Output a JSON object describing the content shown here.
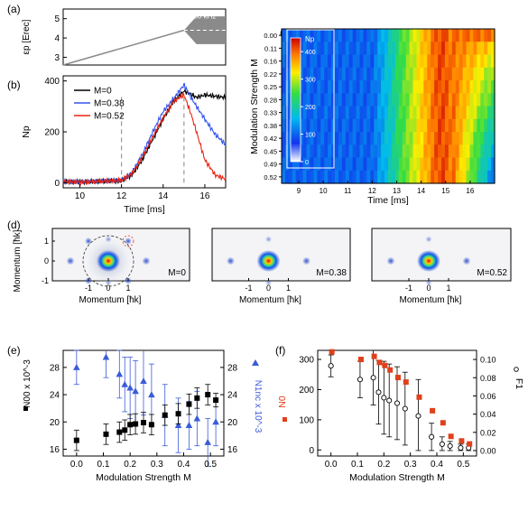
{
  "panel_labels": {
    "a": "(a)",
    "b": "(b)",
    "c": "(c)",
    "d": "(d)",
    "e": "(e)",
    "f": "(f)"
  },
  "chart_data": [
    {
      "id": "a",
      "type": "line",
      "ylabel": "εp [Erec]",
      "yticks": [
        3,
        4,
        5
      ],
      "xlim": [
        9.2,
        17
      ],
      "ylim": [
        2.6,
        5.5
      ],
      "series": [
        {
          "x": [
            9.2,
            15.0
          ],
          "y": [
            2.6,
            4.4
          ]
        }
      ],
      "modulated_region": {
        "x_start": 15.0,
        "x_end": 17.0,
        "center": 4.4,
        "max_amplitude": 0.72
      },
      "annotation": "50 kHz",
      "colors": {
        "line": "#8a8a8a",
        "fill": "#8a8a8a"
      }
    },
    {
      "id": "b",
      "type": "line",
      "xlabel": "Time [ms]",
      "ylabel": "Np",
      "xlim": [
        9.2,
        17
      ],
      "ylim": [
        -20,
        420
      ],
      "xticks": [
        10,
        12,
        14,
        16
      ],
      "yticks": [
        0,
        200,
        400
      ],
      "vlines": [
        12,
        15
      ],
      "legend": {
        "position": "top-left",
        "entries": [
          "M=0",
          "M=0.38",
          "M=0.52"
        ]
      },
      "series": [
        {
          "name": "M=0",
          "color": "#000000",
          "x": [
            9.2,
            10,
            11,
            12,
            12.5,
            13,
            13.5,
            14,
            14.5,
            15,
            15.3,
            15.6,
            16,
            16.5,
            17
          ],
          "y": [
            5,
            3,
            6,
            8,
            30,
            90,
            170,
            250,
            320,
            360,
            350,
            335,
            345,
            340,
            335
          ]
        },
        {
          "name": "M=0.38",
          "color": "#3355ee",
          "x": [
            9.2,
            10,
            11,
            12,
            12.5,
            13,
            13.5,
            14,
            14.5,
            15,
            15.3,
            15.6,
            16,
            16.5,
            17
          ],
          "y": [
            5,
            3,
            6,
            10,
            40,
            110,
            200,
            280,
            330,
            385,
            340,
            300,
            250,
            190,
            150
          ]
        },
        {
          "name": "M=0.52",
          "color": "#ee2211",
          "x": [
            9.2,
            10,
            11,
            12,
            12.5,
            13,
            13.5,
            14,
            14.5,
            15,
            15.3,
            15.6,
            16,
            16.5,
            17
          ],
          "y": [
            5,
            3,
            6,
            9,
            35,
            100,
            180,
            255,
            320,
            345,
            280,
            200,
            90,
            30,
            15
          ]
        }
      ]
    },
    {
      "id": "c",
      "type": "heatmap",
      "title": "Np",
      "xlabel": "Time [ms]",
      "ylabel": "Modulation Strength M",
      "xlim": [
        8.3,
        17
      ],
      "xticks": [
        9,
        10,
        11,
        12,
        13,
        14,
        15,
        16
      ],
      "rows": [
        "0.00",
        "0.11",
        "0.16",
        "0.22",
        "0.25",
        "0.28",
        "0.33",
        "0.38",
        "0.42",
        "0.45",
        "0.49",
        "0.52"
      ],
      "colorbar": {
        "ticks": [
          0,
          100,
          200,
          300,
          400
        ],
        "min": 0,
        "max": 450
      }
    },
    {
      "id": "d",
      "type": "image",
      "xlabel": "Momentum [ħk]",
      "ylabel": "Momentum [ħk]",
      "xticks": [
        -1,
        0,
        1
      ],
      "yticks": [
        1,
        0,
        -1
      ],
      "images": [
        {
          "label": "M=0"
        },
        {
          "label": "M=0.38"
        },
        {
          "label": "M=0.52"
        }
      ]
    },
    {
      "id": "e",
      "type": "scatter",
      "xlabel": "Modulation Strength M",
      "ylabel_left": "N00 x 10^-3",
      "ylabel_right": "N1nc x 10^-3",
      "xlim": [
        -0.05,
        0.55
      ],
      "ylim": [
        15,
        30.5
      ],
      "xticks": [
        0.0,
        0.1,
        0.2,
        0.3,
        0.4,
        0.5
      ],
      "yticks": [
        16,
        20,
        24,
        28
      ],
      "series": [
        {
          "name": "N00",
          "color": "#000000",
          "marker": "square",
          "x": [
            0,
            0.11,
            0.16,
            0.18,
            0.2,
            0.22,
            0.25,
            0.28,
            0.33,
            0.38,
            0.42,
            0.45,
            0.49,
            0.52
          ],
          "y": [
            17.3,
            18.2,
            18.5,
            18.8,
            19.6,
            19.7,
            19.9,
            19.6,
            21.0,
            21.2,
            22.6,
            23.5,
            24.0,
            23.2
          ],
          "err": [
            1.5,
            1.5,
            1.5,
            1.5,
            1.5,
            1.5,
            1.5,
            1.5,
            1.5,
            1.5,
            1.5,
            1.5,
            1.5,
            1.0
          ]
        },
        {
          "name": "N1nc",
          "color": "#3a5bd9",
          "marker": "triangle",
          "x": [
            0,
            0.11,
            0.16,
            0.18,
            0.2,
            0.22,
            0.25,
            0.28,
            0.33,
            0.38,
            0.42,
            0.45,
            0.49,
            0.52
          ],
          "y": [
            28.0,
            29.5,
            27.0,
            25.5,
            25.0,
            24.5,
            26.0,
            24.0,
            21.0,
            19.5,
            19.5,
            20.5,
            17.0,
            20.0
          ],
          "err": [
            2.5,
            3.0,
            3.5,
            4.0,
            4.5,
            4.5,
            5.0,
            4.5,
            4.5,
            4.0,
            3.5,
            4.0,
            3.5,
            3.5
          ]
        }
      ]
    },
    {
      "id": "f",
      "type": "scatter",
      "xlabel": "Modulation Strength M",
      "ylabel_left": "N0",
      "ylabel_right": "F1",
      "xlim": [
        -0.05,
        0.55
      ],
      "ylim_left": [
        -20,
        330
      ],
      "ylim_right": [
        -0.006,
        0.11
      ],
      "xticks": [
        0.0,
        0.1,
        0.2,
        0.3,
        0.4,
        0.5
      ],
      "yticks_left": [
        0,
        100,
        200,
        300
      ],
      "yticks_right": [
        0.0,
        0.02,
        0.04,
        0.06,
        0.08,
        0.1
      ],
      "series": [
        {
          "name": "N0",
          "color": "#e0401c",
          "marker": "square",
          "axis": "left",
          "x": [
            0,
            0.11,
            0.16,
            0.18,
            0.2,
            0.22,
            0.25,
            0.28,
            0.33,
            0.38,
            0.42,
            0.45,
            0.49,
            0.52
          ],
          "y": [
            325,
            300,
            310,
            290,
            280,
            265,
            240,
            225,
            175,
            130,
            90,
            45,
            30,
            20
          ]
        },
        {
          "name": "F1",
          "color": "#000000",
          "marker": "circle",
          "axis": "right",
          "x": [
            0,
            0.11,
            0.16,
            0.18,
            0.2,
            0.22,
            0.25,
            0.28,
            0.33,
            0.38,
            0.42,
            0.45,
            0.49,
            0.52
          ],
          "y": [
            0.093,
            0.078,
            0.08,
            0.064,
            0.058,
            0.055,
            0.052,
            0.046,
            0.038,
            0.015,
            0.007,
            0.005,
            0.003,
            0.003
          ],
          "err": [
            0.012,
            0.02,
            0.03,
            0.035,
            0.04,
            0.04,
            0.04,
            0.04,
            0.04,
            0.015,
            0.008,
            0.005,
            0.004,
            0.004
          ]
        }
      ]
    }
  ]
}
